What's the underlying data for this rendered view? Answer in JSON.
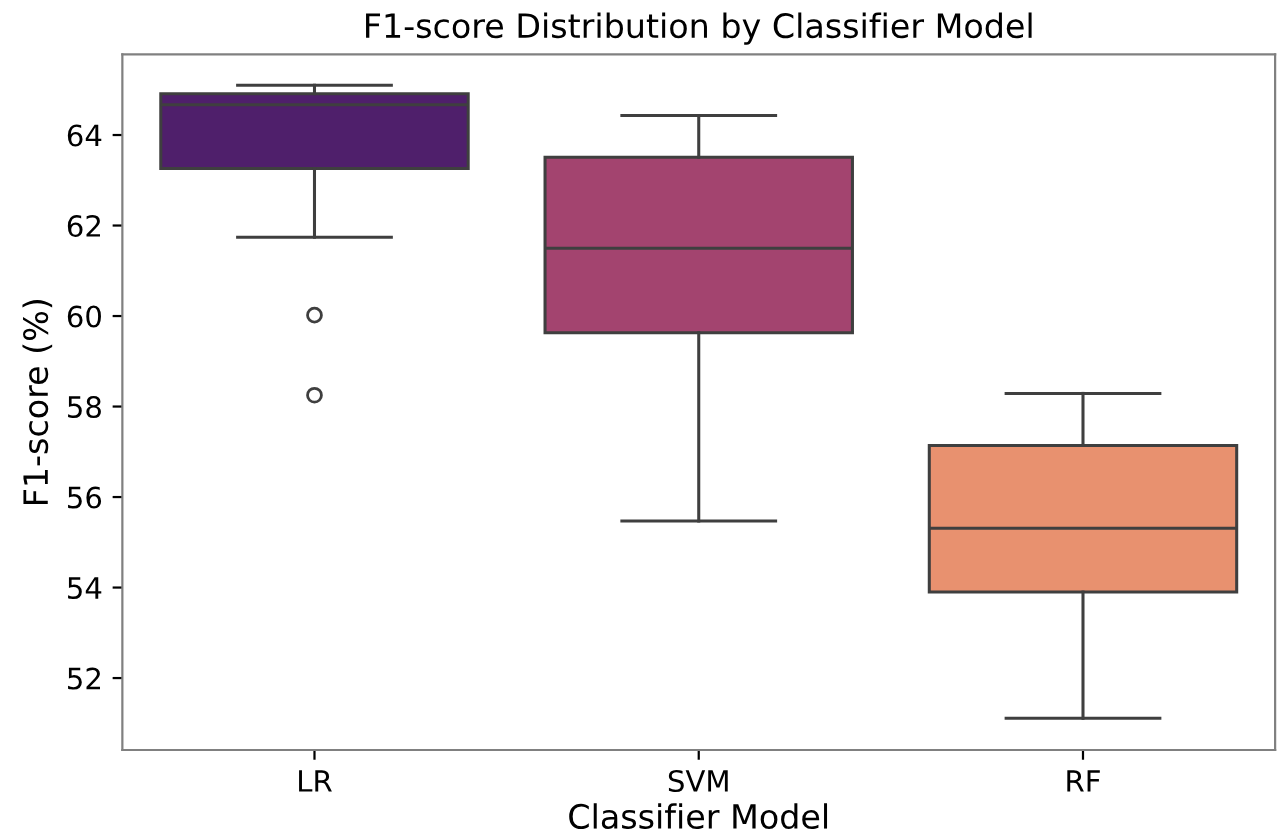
{
  "chart_data": {
    "type": "box",
    "title": "F1-score Distribution by Classifier Model",
    "xlabel": "Classifier Model",
    "ylabel": "F1-score (%)",
    "categories": [
      "LR",
      "SVM",
      "RF"
    ],
    "colors": [
      "#4f1f6b",
      "#a3446f",
      "#e8916f"
    ],
    "boxes": [
      {
        "low": 61.74,
        "q1": 63.26,
        "median": 64.67,
        "q3": 64.91,
        "high": 65.1,
        "outliers": [
          60.02,
          58.25
        ]
      },
      {
        "low": 55.47,
        "q1": 59.63,
        "median": 61.5,
        "q3": 63.51,
        "high": 64.43
      },
      {
        "low": 51.11,
        "q1": 53.9,
        "median": 55.31,
        "q3": 57.14,
        "high": 58.29
      }
    ],
    "ylim": [
      50.41,
      65.78
    ],
    "yticks": [
      52,
      54,
      56,
      58,
      60,
      62,
      64
    ],
    "grid": false
  }
}
